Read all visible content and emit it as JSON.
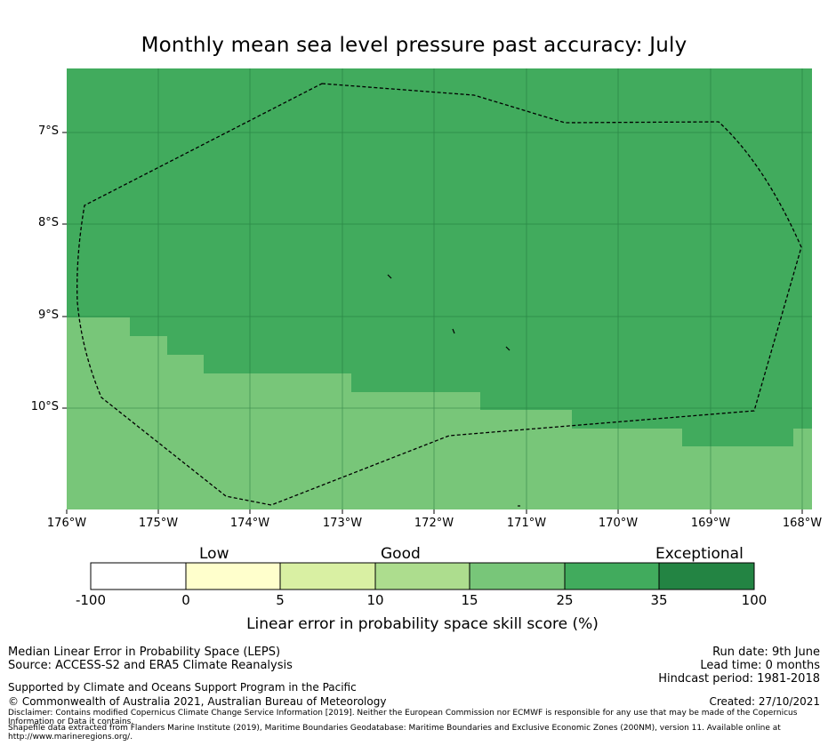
{
  "title": "Monthly mean sea level pressure past accuracy: July",
  "map": {
    "lat_labels": [
      "7°S",
      "8°S",
      "9°S",
      "10°S"
    ],
    "lon_labels": [
      "176°W",
      "175°W",
      "174°W",
      "173°W",
      "172°W",
      "171°W",
      "170°W",
      "169°W",
      "168°W"
    ],
    "colors": {
      "good_25_35": "#41ab5d",
      "good_15_25": "#78c679",
      "eez_boundary": "#000000"
    }
  },
  "colorbar": {
    "categories": [
      "Low",
      "Good",
      "Exceptional"
    ],
    "ticks": [
      "-100",
      "0",
      "5",
      "10",
      "15",
      "25",
      "35",
      "100"
    ],
    "colors": [
      "#ffffff",
      "#ffffcc",
      "#d9f0a3",
      "#addd8e",
      "#78c679",
      "#41ab5d",
      "#238443"
    ],
    "label": "Linear error in probability space skill score (%)"
  },
  "footer": {
    "line1": "Median Linear Error in Probability Space (LEPS)",
    "line2": "Source: ACCESS-S2 and ERA5 Climate Reanalysis",
    "supported": "Supported by Climate and Oceans Support Program in the Pacific",
    "copyright": "© Commonwealth of Australia 2021, Australian Bureau of Meteorology",
    "disclaimer": "Disclaimer: Contains modified Copernicus Climate Change Service Information [2019]. Neither the European Commission nor ECMWF is responsible for any use that may be made of the Copernicus Information or Data it contains.",
    "shapefile": "Shapefile data extracted from Flanders Marine Institute (2019), Maritime Boundaries Geodatabase: Maritime Boundaries and Exclusive Economic Zones (200NM), version 11. Available online at http://www.marineregions.org/.",
    "run_date": "Run date: 9th June",
    "lead_time": "Lead time: 0 months",
    "hindcast": "Hindcast period: 1981-2018",
    "created": "Created: 27/10/2021"
  }
}
